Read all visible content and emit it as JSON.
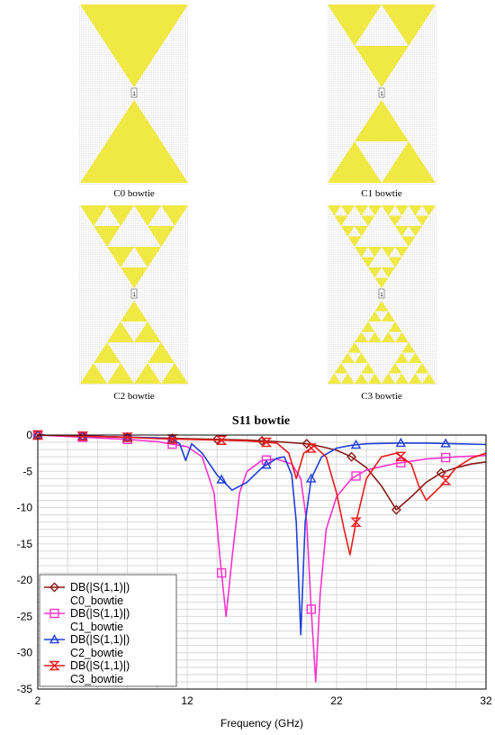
{
  "panels": [
    {
      "label": "C0 bowtie",
      "level": 0
    },
    {
      "label": "C1 bowtie",
      "level": 1
    },
    {
      "label": "C2 bowtie",
      "level": 2
    },
    {
      "label": "C3 bowtie",
      "level": 3
    }
  ],
  "port_label": "1",
  "colors": {
    "fractal_fill": "#f0e843",
    "grid": "#d8d8d8",
    "c0": "#8b1a1a",
    "c1": "#ff33cc",
    "c2": "#1f3fd6",
    "c3": "#e81c1c"
  },
  "chart_data": {
    "type": "line",
    "title": "S11 bowtie",
    "xlabel": "Frequency (GHz)",
    "ylabel": "",
    "xlim": [
      2,
      32
    ],
    "ylim": [
      -35,
      0
    ],
    "xticks": [
      2,
      12,
      22,
      32
    ],
    "yticks": [
      0,
      -5,
      -10,
      -15,
      -20,
      -25,
      -30,
      -35
    ],
    "grid": true,
    "legend_position": "bottom-left",
    "series": [
      {
        "legend_line1": "DB(|S(1,1)|)",
        "legend_line2": "C0_bowtie",
        "color": "#8b1a1a",
        "marker": "diamond",
        "x": [
          2,
          4,
          6,
          8,
          10,
          12,
          14,
          16,
          18,
          20,
          21,
          22,
          23,
          24,
          25,
          26,
          27,
          28,
          29,
          30,
          31,
          32
        ],
        "y": [
          0,
          -0.1,
          -0.2,
          -0.3,
          -0.4,
          -0.5,
          -0.6,
          -0.7,
          -0.9,
          -1.2,
          -1.6,
          -2.1,
          -3.0,
          -4.5,
          -7.0,
          -10.3,
          -8.5,
          -6.5,
          -5.2,
          -4.5,
          -4.0,
          -3.7
        ],
        "marker_x": [
          2,
          5,
          8,
          11,
          14,
          17,
          20,
          23,
          26,
          29
        ]
      },
      {
        "legend_line1": "DB(|S(1,1)|)",
        "legend_line2": "C1_bowtie",
        "color": "#ff33cc",
        "marker": "square",
        "x": [
          2,
          4,
          6,
          8,
          10,
          12,
          13,
          13.8,
          14.2,
          14.6,
          15,
          15.5,
          16,
          17,
          18,
          19,
          19.6,
          20,
          20.3,
          20.6,
          20.9,
          21.3,
          22,
          23,
          24,
          26,
          28,
          30,
          32
        ],
        "y": [
          0,
          -0.2,
          -0.4,
          -0.6,
          -0.9,
          -1.6,
          -3.0,
          -8.0,
          -17.0,
          -25.0,
          -17.0,
          -8.0,
          -5.0,
          -3.5,
          -3.3,
          -4.0,
          -6.0,
          -12.0,
          -24.0,
          -34.0,
          -22.0,
          -13.0,
          -8.5,
          -6.0,
          -4.8,
          -3.9,
          -3.3,
          -3.0,
          -2.8
        ],
        "marker_x": [
          2,
          5,
          8,
          11,
          14.3,
          17.3,
          20.3,
          23.3,
          26.3,
          29.3
        ]
      },
      {
        "legend_line1": "DB(|S(1,1)|)",
        "legend_line2": "C2_bowtie",
        "color": "#1f3fd6",
        "marker": "triangle",
        "x": [
          2,
          4,
          6,
          8,
          10,
          11,
          11.5,
          11.9,
          12.3,
          13,
          14,
          15,
          16,
          17,
          18,
          18.5,
          19,
          19.3,
          19.6,
          19.9,
          20.3,
          21,
          22,
          23,
          24,
          26,
          28,
          30,
          32
        ],
        "y": [
          0,
          -0.1,
          -0.2,
          -0.3,
          -0.4,
          -0.6,
          -1.2,
          -3.5,
          -1.2,
          -2.5,
          -5.5,
          -7.6,
          -6.5,
          -4.5,
          -3.2,
          -3.0,
          -5.5,
          -12.0,
          -27.5,
          -12.0,
          -6.0,
          -3.0,
          -1.8,
          -1.4,
          -1.2,
          -1.1,
          -1.1,
          -1.2,
          -1.3
        ],
        "marker_x": [
          2,
          5,
          8,
          11,
          14.3,
          17.3,
          20.3,
          23.3,
          26.3,
          29.3
        ]
      },
      {
        "legend_line1": "DB(|S(1,1)|)",
        "legend_line2": "C3_bowtie",
        "color": "#e81c1c",
        "marker": "hourglass",
        "x": [
          2,
          4,
          6,
          8,
          10,
          12,
          14,
          16,
          18,
          18.8,
          19.3,
          19.8,
          20.5,
          21.3,
          22.0,
          22.5,
          22.9,
          23.3,
          24,
          25,
          26,
          27,
          27.5,
          28,
          29,
          30,
          31,
          32
        ],
        "y": [
          0,
          -0.1,
          -0.2,
          -0.3,
          -0.5,
          -0.6,
          -0.7,
          -0.8,
          -1.1,
          -2.5,
          -6.0,
          -2.5,
          -1.5,
          -3.0,
          -8.0,
          -13.0,
          -16.5,
          -12.0,
          -6.0,
          -3.0,
          -2.5,
          -4.0,
          -7.0,
          -9.0,
          -7.0,
          -4.5,
          -3.2,
          -2.5
        ],
        "marker_x": [
          2,
          5,
          8,
          11,
          14.3,
          17.3,
          20.3,
          23.3,
          26.3,
          29.3
        ]
      }
    ]
  }
}
